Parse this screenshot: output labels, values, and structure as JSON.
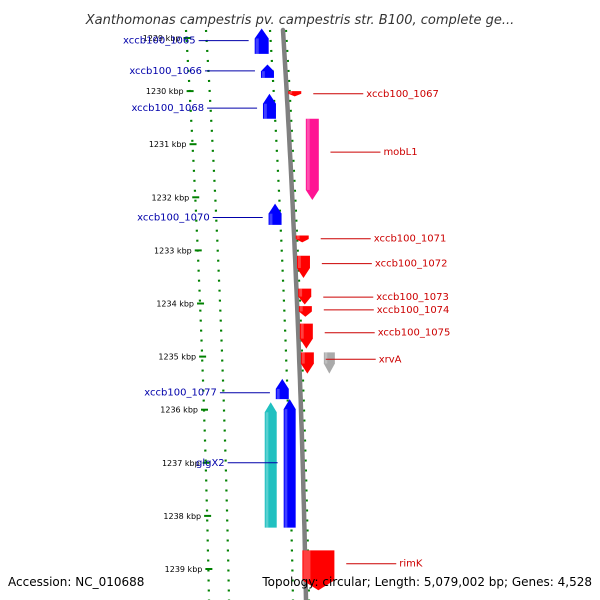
{
  "title": "Xanthomonas campestris pv. campestris str. B100, complete ge...",
  "footer": {
    "accession": "Accession: NC_010688",
    "topology": "Topology: circular; Length: 5,079,002 bp; Genes: 4,528"
  },
  "colors": {
    "forward_gene": "#ff0000",
    "reverse_gene": "#0000ff",
    "mobile_element": "#ff1493",
    "rna_gene": "#20c0c0",
    "other_gene": "#aaaaaa",
    "tick_mark": "#008000",
    "backbone": "#808080",
    "forward_label": "#cc0000",
    "reverse_label": "#0000aa"
  },
  "ticks": [
    {
      "label": "1229 kbp",
      "pos": 1229
    },
    {
      "label": "1230 kbp",
      "pos": 1230
    },
    {
      "label": "1231 kbp",
      "pos": 1231
    },
    {
      "label": "1232 kbp",
      "pos": 1232
    },
    {
      "label": "1233 kbp",
      "pos": 1233
    },
    {
      "label": "1234 kbp",
      "pos": 1234
    },
    {
      "label": "1235 kbp",
      "pos": 1235
    },
    {
      "label": "1236 kbp",
      "pos": 1236
    },
    {
      "label": "1237 kbp",
      "pos": 1237
    },
    {
      "label": "1238 kbp",
      "pos": 1238
    },
    {
      "label": "1239 kbp",
      "pos": 1239
    }
  ],
  "genes": [
    {
      "name": "xccb100_1065",
      "strand": "-",
      "type": "cds",
      "start": 1228.82,
      "end": 1229.3,
      "label_pos": 1229.05
    },
    {
      "name": "xccb100_1066",
      "strand": "-",
      "type": "cds",
      "start": 1229.5,
      "end": 1229.75,
      "label_pos": 1229.62
    },
    {
      "name": "xccb100_1067",
      "strand": "+",
      "type": "cds",
      "start": 1230.0,
      "end": 1230.1,
      "label_pos": 1230.05
    },
    {
      "name": "xccb100_1068",
      "strand": "-",
      "type": "cds",
      "start": 1230.05,
      "end": 1230.52,
      "label_pos": 1230.32
    },
    {
      "name": "mobL1",
      "strand": "+",
      "type": "mobile",
      "start": 1230.52,
      "end": 1232.05,
      "label_pos": 1231.15
    },
    {
      "name": "xccb100_1070",
      "strand": "-",
      "type": "cds",
      "start": 1232.12,
      "end": 1232.52,
      "label_pos": 1232.38
    },
    {
      "name": "xccb100_1071",
      "strand": "+",
      "type": "cds",
      "start": 1232.72,
      "end": 1232.85,
      "label_pos": 1232.78
    },
    {
      "name": "xccb100_1072",
      "strand": "+",
      "type": "cds",
      "start": 1233.1,
      "end": 1233.52,
      "label_pos": 1233.25
    },
    {
      "name": "xccb100_1073",
      "strand": "+",
      "type": "cds",
      "start": 1233.72,
      "end": 1234.02,
      "label_pos": 1233.88
    },
    {
      "name": "xccb100_1074",
      "strand": "+",
      "type": "cds",
      "start": 1234.05,
      "end": 1234.25,
      "label_pos": 1234.12
    },
    {
      "name": "xccb100_1075",
      "strand": "+",
      "type": "cds",
      "start": 1234.38,
      "end": 1234.85,
      "label_pos": 1234.55
    },
    {
      "name": "xrvA",
      "strand": "+",
      "type": "cds",
      "start": 1234.92,
      "end": 1235.32,
      "label_pos": 1235.05
    },
    {
      "name": "",
      "strand": "+",
      "type": "other",
      "start": 1234.92,
      "end": 1235.32,
      "label_pos": 1235.05
    },
    {
      "name": "xccb100_1077",
      "strand": "-",
      "type": "cds",
      "start": 1235.42,
      "end": 1235.8,
      "label_pos": 1235.68
    },
    {
      "name": "glgX2",
      "strand": "-",
      "type": "cds",
      "start": 1235.8,
      "end": 1238.22,
      "label_pos": 1237.0
    },
    {
      "name": "",
      "strand": "-",
      "type": "rna",
      "start": 1235.86,
      "end": 1238.22,
      "label_pos": 1237.0
    },
    {
      "name": "rimK",
      "strand": "+",
      "type": "cds",
      "start": 1238.65,
      "end": 1239.4,
      "label_pos": 1238.9
    }
  ]
}
